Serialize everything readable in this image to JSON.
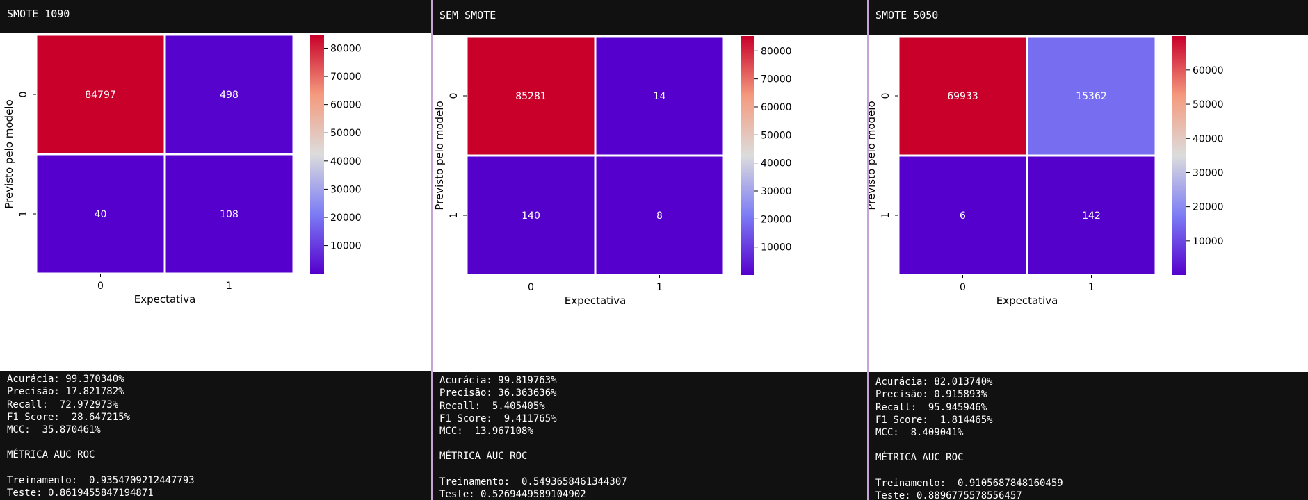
{
  "colors": {
    "low": "#5500cc",
    "mid": "#dddddd",
    "high": "#c8002a",
    "text_on_cell": "#ffffff",
    "panel_bg": "#111111",
    "plot_bg": "#ffffff"
  },
  "chart_data": [
    {
      "type": "heatmap",
      "title": "SMOTE 1090",
      "xlabel": "Expectativa",
      "ylabel": "Previsto pelo modelo",
      "x_categories": [
        "0",
        "1"
      ],
      "y_categories": [
        "0",
        "1"
      ],
      "values": [
        [
          84797,
          498
        ],
        [
          40,
          108
        ]
      ],
      "colorbar_range": [
        40,
        84797
      ],
      "colorbar_ticks": [
        10000,
        20000,
        30000,
        40000,
        50000,
        60000,
        70000,
        80000
      ],
      "colormap": "rainbow (purple-blue-red)",
      "metrics": [
        "Acurácia: 99.370340%",
        "Precisão: 17.821782%",
        "Recall:  72.972973%",
        "F1 Score:  28.647215%",
        "MCC:  35.870461%",
        "",
        "MÉTRICA AUC ROC",
        "",
        "Treinamento:  0.9354709212447793",
        "Teste: 0.8619455847194871"
      ]
    },
    {
      "type": "heatmap",
      "title": "SEM SMOTE",
      "xlabel": "Expectativa",
      "ylabel": "Previsto pelo modelo",
      "x_categories": [
        "0",
        "1"
      ],
      "y_categories": [
        "0",
        "1"
      ],
      "values": [
        [
          85281,
          14
        ],
        [
          140,
          8
        ]
      ],
      "colorbar_range": [
        8,
        85281
      ],
      "colorbar_ticks": [
        10000,
        20000,
        30000,
        40000,
        50000,
        60000,
        70000,
        80000
      ],
      "colormap": "rainbow (purple-blue-red)",
      "metrics": [
        "Acurácia: 99.819763%",
        "Precisão: 36.363636%",
        "Recall:  5.405405%",
        "F1 Score:  9.411765%",
        "MCC:  13.967108%",
        "",
        "MÉTRICA AUC ROC",
        "",
        "Treinamento:  0.5493658461344307",
        "Teste: 0.5269449589104902"
      ]
    },
    {
      "type": "heatmap",
      "title": "SMOTE 5050",
      "xlabel": "Expectativa",
      "ylabel": "Previsto pelo modelo",
      "x_categories": [
        "0",
        "1"
      ],
      "y_categories": [
        "0",
        "1"
      ],
      "values": [
        [
          69933,
          15362
        ],
        [
          6,
          142
        ]
      ],
      "colorbar_range": [
        6,
        69933
      ],
      "colorbar_ticks": [
        10000,
        20000,
        30000,
        40000,
        50000,
        60000
      ],
      "colormap": "rainbow (purple-blue-red)",
      "metrics": [
        "Acurácia: 82.013740%",
        "Precisão: 0.915893%",
        "Recall:  95.945946%",
        "F1 Score:  1.814465%",
        "MCC:  8.409041%",
        "",
        "MÉTRICA AUC ROC",
        "",
        "Treinamento:  0.9105687848160459",
        "Teste: 0.8896775578556457"
      ]
    }
  ]
}
